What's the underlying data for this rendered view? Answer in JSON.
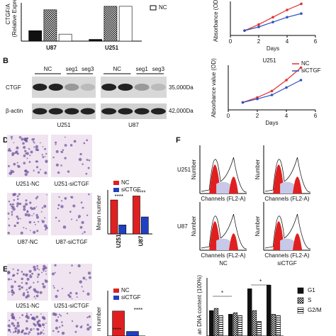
{
  "panels": {
    "b": "B",
    "d": "D",
    "e": "E",
    "f": "F"
  },
  "expression": {
    "y_label": "CTGF/A",
    "y_label2": "(Relative Expre",
    "categories": [
      "U87",
      "U251"
    ],
    "series": [
      {
        "pattern": "solid",
        "values": [
          0.3,
          0.05
        ]
      },
      {
        "pattern": "checker",
        "values": [
          0.9,
          1.0
        ]
      },
      {
        "name": "NC",
        "pattern": "white",
        "values": [
          0.2,
          1.0
        ]
      }
    ],
    "ylim": [
      0,
      1.1
    ]
  },
  "growth_top": {
    "y_label": "Absorbance (OD)",
    "x_label": "Days",
    "x": [
      1,
      2,
      3,
      4,
      5
    ],
    "series": [
      {
        "color": "#e03030",
        "values": [
          0.2,
          0.45,
          0.75,
          1.05,
          1.3
        ]
      },
      {
        "color": "#3050c0",
        "values": [
          0.2,
          0.35,
          0.55,
          0.75,
          0.9
        ]
      }
    ],
    "xlim": [
      0,
      6
    ],
    "xticks": [
      0,
      2,
      4,
      6
    ],
    "ylim": [
      0,
      1.4
    ]
  },
  "growth_u251": {
    "title": "U251",
    "y_label": "Absorbance value (OD)",
    "x_label": "Days",
    "x": [
      1,
      2,
      3,
      4,
      5
    ],
    "series": [
      {
        "name": "NC",
        "color": "#e03030",
        "values": [
          0.15,
          0.25,
          0.38,
          0.6,
          0.85
        ]
      },
      {
        "name": "siCTGF",
        "color": "#3050c0",
        "values": [
          0.15,
          0.22,
          0.3,
          0.45,
          0.6
        ]
      }
    ],
    "xlim": [
      0,
      6
    ],
    "xticks": [
      0,
      2,
      4,
      6
    ],
    "ylim": [
      0,
      0.9
    ]
  },
  "western": {
    "lanes": [
      "NC",
      "seg1",
      "seg3"
    ],
    "proteins": [
      "CTGF",
      "β-actin"
    ],
    "sizes": [
      "35,000Da",
      "42,000Da"
    ],
    "cells": [
      "U251",
      "U87"
    ]
  },
  "migration": {
    "images": [
      "U251-NC",
      "U251-siCTGF",
      "U87-NC",
      "U87-siCTGF"
    ],
    "chart": {
      "y_label": "Mean number",
      "categories": [
        "U251",
        "U87"
      ],
      "series": [
        {
          "name": "NC",
          "color": "#e02020",
          "values": [
            170,
            190
          ]
        },
        {
          "name": "siCTGF",
          "color": "#2040c0",
          "values": [
            45,
            85
          ]
        }
      ],
      "ylim": [
        0,
        220
      ],
      "significance": [
        "****",
        "****"
      ]
    }
  },
  "invasion": {
    "images": [
      "U251-NC",
      "U251-siCTGF"
    ],
    "chart": {
      "y_label": "n number",
      "series": [
        {
          "name": "NC",
          "color": "#e02020",
          "values": [
            110
          ]
        },
        {
          "name": "siCTGF",
          "color": "#2040c0",
          "values": [
            20
          ]
        }
      ],
      "ylim": [
        0,
        200
      ],
      "significance": [
        "****",
        "****"
      ]
    }
  },
  "cell_cycle": {
    "conditions": [
      "NC",
      "siCTGF"
    ],
    "cells": [
      "U251",
      "U87"
    ],
    "y_label": "Number",
    "x_label": "Channels (FL2-A)"
  },
  "dna": {
    "y_label": "an DNA content (100%)",
    "series": [
      {
        "name": "G1",
        "pattern": "solid",
        "values": [
          35,
          30,
          65,
          70
        ]
      },
      {
        "name": "S",
        "pattern": "checker",
        "values": [
          38,
          32,
          35,
          30
        ]
      },
      {
        "name": "G2/M",
        "pattern": "hatch",
        "values": [
          28,
          28,
          20,
          28
        ]
      }
    ],
    "ylim": [
      0,
      80
    ],
    "annotations": [
      "*",
      "*"
    ]
  }
}
